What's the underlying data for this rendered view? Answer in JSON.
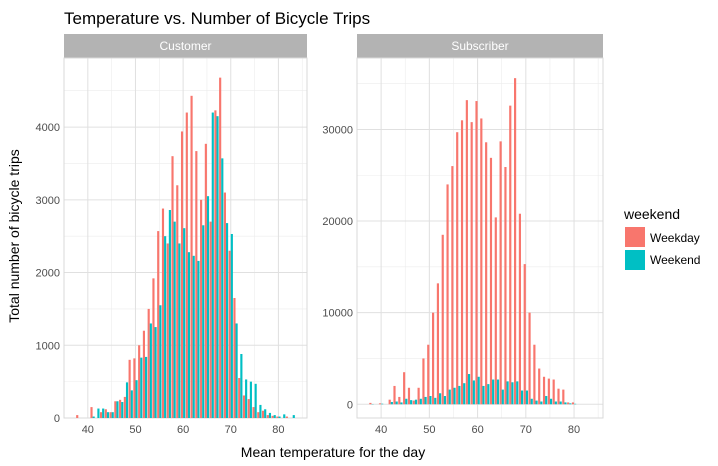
{
  "chart_data": {
    "type": "bar",
    "title": "Temperature vs. Number of Bicycle Trips",
    "xlabel": "Mean temperature for the day",
    "ylabel": "Total number of bicycle trips",
    "xlim": [
      35,
      86
    ],
    "grid": true,
    "legend": {
      "title": "weekend",
      "placement": "right",
      "entries": [
        "Weekday",
        "Weekend"
      ]
    },
    "colors": {
      "Weekday": "#f8766d",
      "Weekend": "#00bfc4",
      "strip": "#b3b3b3",
      "grid": "#e0e0e0"
    },
    "x_ticks": [
      40,
      50,
      60,
      70,
      80
    ],
    "panels": [
      {
        "name": "Customer",
        "ylim": [
          0,
          4950
        ],
        "y_ticks": [
          0,
          1000,
          2000,
          3000,
          4000
        ],
        "series": [
          {
            "name": "Weekday",
            "x": [
              38,
              41,
              43,
              44,
              45,
              46,
              47,
              48,
              49,
              50,
              51,
              52,
              53,
              54,
              55,
              56,
              57,
              58,
              59,
              60,
              61,
              62,
              63,
              64,
              65,
              66,
              67,
              68,
              69,
              70,
              71,
              72,
              73,
              74,
              75,
              76,
              77,
              78,
              79,
              80,
              82
            ],
            "values": [
              40,
              150,
              80,
              120,
              80,
              230,
              250,
              290,
              800,
              820,
              1000,
              1200,
              1500,
              1920,
              2570,
              2880,
              2400,
              3600,
              3200,
              3940,
              4200,
              4430,
              3670,
              3000,
              3770,
              2700,
              4230,
              4680,
              3100,
              2300,
              1650,
              550,
              310,
              260,
              150,
              80,
              100,
              40,
              30,
              20,
              20
            ]
          },
          {
            "name": "Weekend",
            "x": [
              41,
              42,
              43,
              44,
              45,
              46,
              47,
              48,
              49,
              50,
              51,
              52,
              53,
              54,
              55,
              56,
              57,
              58,
              59,
              60,
              61,
              62,
              63,
              64,
              65,
              66,
              67,
              68,
              69,
              70,
              71,
              72,
              73,
              74,
              75,
              76,
              77,
              78,
              79,
              80,
              81,
              83
            ],
            "values": [
              20,
              130,
              130,
              80,
              80,
              230,
              220,
              490,
              380,
              520,
              830,
              840,
              1300,
              1250,
              1550,
              2500,
              2860,
              2700,
              2400,
              2610,
              2280,
              2230,
              2160,
              2650,
              3050,
              4200,
              4150,
              3570,
              2680,
              2530,
              1300,
              880,
              530,
              500,
              470,
              180,
              120,
              70,
              40,
              20,
              50,
              40
            ]
          }
        ]
      },
      {
        "name": "Subscriber",
        "ylim": [
          -1500,
          37800
        ],
        "y_ticks": [
          0,
          10000,
          20000,
          30000
        ],
        "series": [
          {
            "name": "Weekday",
            "x": [
              38,
              40,
              42,
              43,
              44,
              45,
              46,
              47,
              48,
              49,
              50,
              51,
              52,
              53,
              54,
              55,
              56,
              57,
              58,
              59,
              60,
              61,
              62,
              63,
              64,
              65,
              66,
              67,
              68,
              69,
              70,
              71,
              72,
              73,
              74,
              75,
              76,
              77,
              78,
              79,
              80
            ],
            "values": [
              150,
              100,
              500,
              2000,
              800,
              3500,
              1800,
              400,
              1800,
              5000,
              6500,
              10000,
              13200,
              18500,
              24000,
              26000,
              29700,
              31000,
              33200,
              30800,
              33100,
              31200,
              28600,
              26900,
              20400,
              28700,
              25900,
              32600,
              35600,
              20800,
              15300,
              10000,
              6500,
              3900,
              3000,
              2800,
              2700,
              1700,
              1600,
              200,
              200
            ]
          },
          {
            "name": "Weekend",
            "x": [
              38,
              40,
              42,
              43,
              44,
              45,
              46,
              47,
              48,
              49,
              50,
              51,
              52,
              53,
              54,
              55,
              56,
              57,
              58,
              59,
              60,
              61,
              62,
              63,
              64,
              65,
              66,
              67,
              68,
              69,
              70,
              71,
              72,
              73,
              74,
              75,
              76,
              77,
              78,
              79,
              80
            ],
            "values": [
              30,
              60,
              250,
              300,
              200,
              600,
              450,
              500,
              600,
              800,
              900,
              700,
              1200,
              900,
              1600,
              1800,
              2000,
              2300,
              3300,
              2600,
              3000,
              2000,
              2200,
              2700,
              2700,
              1600,
              2500,
              2400,
              2500,
              1500,
              1500,
              600,
              400,
              300,
              900,
              600,
              300,
              300,
              200,
              100,
              50
            ]
          }
        ]
      }
    ]
  }
}
